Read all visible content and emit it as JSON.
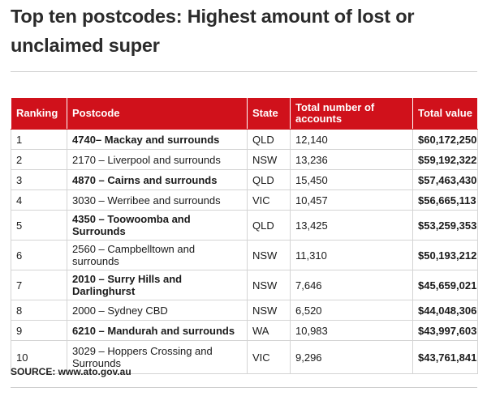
{
  "title": "Top ten postcodes: Highest amount of lost or unclaimed super",
  "table": {
    "headers": [
      "Ranking",
      "Postcode",
      "State",
      "Total number of accounts",
      "Total value"
    ],
    "rows": [
      {
        "ranking": "1",
        "postcode": "4740– Mackay and surrounds",
        "state": "QLD",
        "accounts": "12,140",
        "value": "$60,172,250"
      },
      {
        "ranking": "2",
        "postcode": "2170 – Liverpool and surrounds",
        "state": "NSW",
        "accounts": "13,236",
        "value": "$59,192,322"
      },
      {
        "ranking": "3",
        "postcode": "4870 – Cairns and surrounds",
        "state": "QLD",
        "accounts": "15,450",
        "value": "$57,463,430"
      },
      {
        "ranking": "4",
        "postcode": "3030 – Werribee and surrounds",
        "state": "VIC",
        "accounts": "10,457",
        "value": "$56,665,113"
      },
      {
        "ranking": "5",
        "postcode": "4350 – Toowoomba and Surrounds",
        "state": "QLD",
        "accounts": "13,425",
        "value": "$53,259,353"
      },
      {
        "ranking": "6",
        "postcode": "2560 – Campbelltown and surrounds",
        "state": "NSW",
        "accounts": "11,310",
        "value": "$50,193,212"
      },
      {
        "ranking": "7",
        "postcode": "2010 – Surry Hills and Darlinghurst",
        "state": "NSW",
        "accounts": "7,646",
        "value": "$45,659,021"
      },
      {
        "ranking": "8",
        "postcode": "2000 – Sydney CBD",
        "state": "NSW",
        "accounts": "6,520",
        "value": "$44,048,306"
      },
      {
        "ranking": "9",
        "postcode": "6210 – Mandurah and surrounds",
        "state": "WA",
        "accounts": "10,983",
        "value": "$43,997,603"
      },
      {
        "ranking": "10",
        "postcode": "3029 – Hoppers Crossing and Surrounds",
        "state": "VIC",
        "accounts": "9,296",
        "value": "$43,761,841"
      }
    ]
  },
  "source": "SOURCE: www.ato.gov.au",
  "colors": {
    "header_bg": "#d0111b",
    "header_text": "#ffffff"
  }
}
